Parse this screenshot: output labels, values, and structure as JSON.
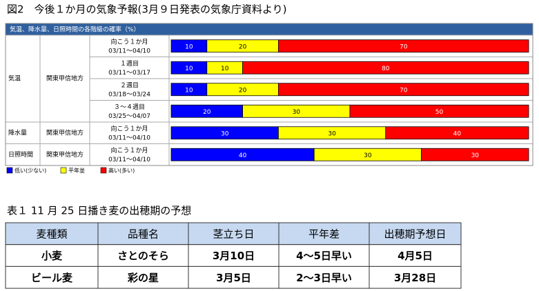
{
  "figure": {
    "caption": "図2　今後１か月の気象予報(3月９日発表の気象庁資料より)",
    "header": "気温、降水量、日照時間の各階級の確率（%）",
    "colors": [
      "#0000ff",
      "#ffff00",
      "#ff0000"
    ],
    "legend": [
      "低い(少ない)",
      "平年並",
      "高い(多い)"
    ],
    "groups": [
      {
        "element": "気温",
        "region": "関東甲信地方",
        "rows": [
          {
            "period": "向こう１か月",
            "dates": "03/11～04/10",
            "values": [
              10,
              20,
              70
            ]
          },
          {
            "period": "１週目",
            "dates": "03/11～03/17",
            "values": [
              10,
              10,
              80
            ]
          },
          {
            "period": "２週目",
            "dates": "03/18～03/24",
            "values": [
              10,
              20,
              70
            ]
          },
          {
            "period": "３～４週目",
            "dates": "03/25～04/07",
            "values": [
              20,
              30,
              50
            ]
          }
        ]
      },
      {
        "element": "降水量",
        "region": "関東甲信地方",
        "rows": [
          {
            "period": "向こう１か月",
            "dates": "03/11～04/10",
            "values": [
              30,
              30,
              40
            ]
          }
        ]
      },
      {
        "element": "日照時間",
        "region": "関東甲信地方",
        "rows": [
          {
            "period": "向こう１か月",
            "dates": "03/11～04/10",
            "values": [
              40,
              30,
              30
            ]
          }
        ]
      }
    ]
  },
  "table": {
    "caption": "表１ 11 月 25 日播き麦の出穂期の予想",
    "header": [
      "麦種類",
      "品種名",
      "茎立ち日",
      "平年差",
      "出穂期予想日"
    ],
    "rows": [
      [
        "小麦",
        "さとのそら",
        "3月10日",
        "4～5日早い",
        "4月5日"
      ],
      [
        "ビール麦",
        "彩の星",
        "3月5日",
        "2～3日早い",
        "3月28日"
      ]
    ]
  }
}
